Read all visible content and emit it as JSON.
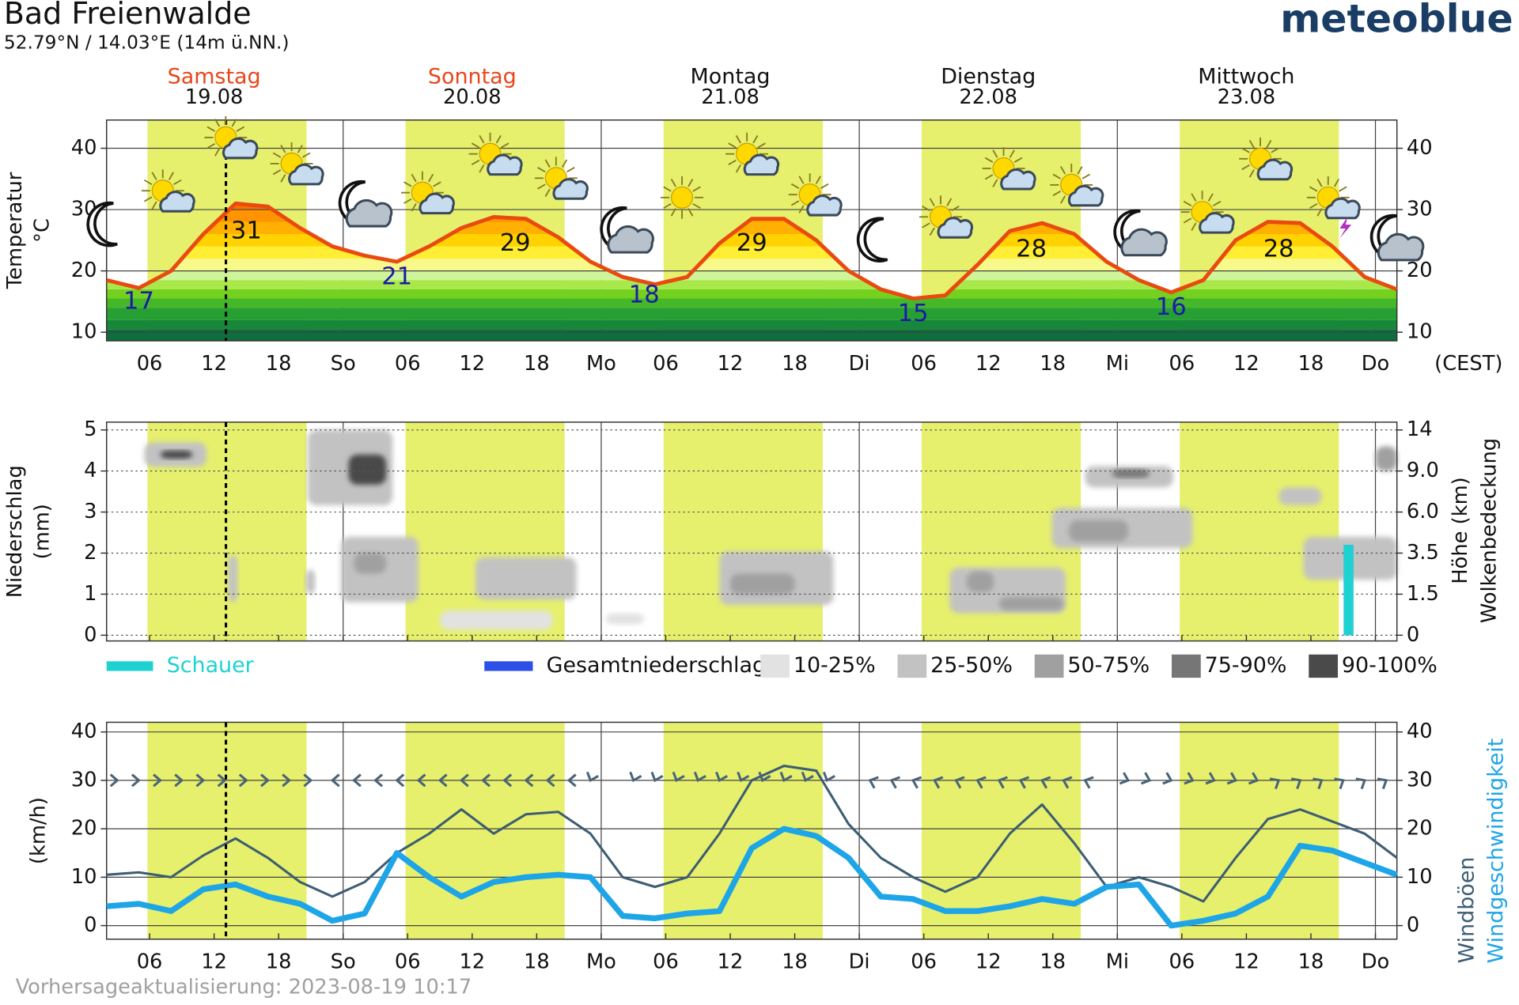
{
  "header": {
    "title": "Bad Freienwalde",
    "subtitle": "52.79°N / 14.03°E (14m ü.NN.)",
    "logo": "meteoblue",
    "timezone": "(CEST)",
    "footer": "Vorhersageaktualisierung: 2023-08-19 10:17"
  },
  "chart_data": [
    {
      "type": "line",
      "axis_label": [
        "Temperatur",
        "°C"
      ],
      "days": [
        {
          "name": "Samstag",
          "date": "19.08",
          "color": "#e8461a"
        },
        {
          "name": "Sonntag",
          "date": "20.08",
          "color": "#e8461a"
        },
        {
          "name": "Montag",
          "date": "21.08",
          "color": "#111111"
        },
        {
          "name": "Dienstag",
          "date": "22.08",
          "color": "#111111"
        },
        {
          "name": "Mittwoch",
          "date": "23.08",
          "color": "#111111"
        }
      ],
      "daylight": [
        [
          5.8,
          20.6
        ],
        [
          29.8,
          44.6
        ],
        [
          53.8,
          68.6
        ],
        [
          77.8,
          92.6
        ],
        [
          101.8,
          116.6
        ]
      ],
      "daylight_color": "#e6f06c",
      "now": 13.1,
      "xlim": [
        2,
        122
      ],
      "xticks": [
        {
          "value": 6,
          "label": "06"
        },
        12,
        18,
        {
          "value": 24,
          "label": "So"
        },
        {
          "value": 30,
          "label": "06"
        },
        {
          "value": 36,
          "label": "12"
        },
        {
          "value": 42,
          "label": "18"
        },
        {
          "value": 48,
          "label": "Mo"
        },
        {
          "value": 54,
          "label": "06"
        },
        {
          "value": 60,
          "label": "12"
        },
        {
          "value": 66,
          "label": "18"
        },
        {
          "value": 72,
          "label": "Di"
        },
        {
          "value": 78,
          "label": "06"
        },
        {
          "value": 84,
          "label": "12"
        },
        {
          "value": 90,
          "label": "18"
        },
        {
          "value": 96,
          "label": "Mi"
        },
        {
          "value": 102,
          "label": "06"
        },
        {
          "value": 108,
          "label": "12"
        },
        {
          "value": 114,
          "label": "18"
        },
        {
          "value": 120,
          "label": "Do"
        }
      ],
      "ylim": [
        8.6,
        44.6
      ],
      "yticks": [
        10,
        20,
        30,
        40
      ],
      "mirror_ticks": true,
      "grid": "solid",
      "x": [
        2,
        5,
        8,
        11,
        14,
        17,
        20,
        23,
        26,
        29,
        32,
        35,
        38,
        41,
        44,
        47,
        50,
        53,
        56,
        59,
        62,
        65,
        68,
        71,
        74,
        77,
        80,
        83,
        86,
        89,
        92,
        95,
        98,
        101,
        104,
        107,
        110,
        113,
        116,
        119,
        122
      ],
      "values": [
        18.5,
        17.2,
        20,
        26,
        31,
        30.5,
        27,
        24,
        22.5,
        21.5,
        24,
        27,
        28.8,
        28.5,
        25.5,
        21.5,
        19,
        17.8,
        19,
        24.5,
        28.5,
        28.5,
        25,
        20,
        17,
        15.5,
        16,
        21,
        26.5,
        27.8,
        26,
        21.5,
        18.5,
        16.5,
        18.5,
        25,
        28,
        27.8,
        24,
        19,
        17
      ],
      "color": "#e84a10",
      "color_scale": [
        [
          0,
          "#0e6e3c"
        ],
        [
          10.5,
          "#17873a"
        ],
        [
          12,
          "#27a033"
        ],
        [
          14,
          "#45b82a"
        ],
        [
          15.5,
          "#75d11f"
        ],
        [
          17,
          "#a8e84a"
        ],
        [
          18.5,
          "#cff59a"
        ],
        [
          20,
          "#f7f98a"
        ],
        [
          22,
          "#ffee33"
        ],
        [
          24,
          "#ffd200"
        ],
        [
          26,
          "#ffb000"
        ],
        [
          28,
          "#ff9400"
        ],
        [
          30,
          "#ff6e00"
        ]
      ],
      "extremes": [
        {
          "x": 5,
          "value": 17,
          "kind": "min"
        },
        {
          "x": 15,
          "value": 31,
          "kind": "max"
        },
        {
          "x": 29,
          "value": 21,
          "kind": "min"
        },
        {
          "x": 40,
          "value": 29,
          "kind": "max"
        },
        {
          "x": 52,
          "value": 18,
          "kind": "min"
        },
        {
          "x": 62,
          "value": 29,
          "kind": "max"
        },
        {
          "x": 77,
          "value": 15,
          "kind": "min"
        },
        {
          "x": 88,
          "value": 28,
          "kind": "max"
        },
        {
          "x": 101,
          "value": 16,
          "kind": "min"
        },
        {
          "x": 111,
          "value": 28,
          "kind": "max"
        }
      ],
      "min_color": "#1a1aa8",
      "max_color": "#111111"
    },
    {
      "type": "precipitation",
      "axis_label": [
        "Niederschlag",
        "(mm)"
      ],
      "y2_label": [
        "Höhe (km)",
        "Wolkenbedeckung"
      ],
      "xlim": [
        2,
        122
      ],
      "ylim": [
        -0.14,
        5.19
      ],
      "yticks": [
        0,
        1,
        2,
        3,
        4,
        5
      ],
      "y2ticks": [
        0,
        1.5,
        3.5,
        {
          "value": 6,
          "label": "6.0"
        },
        {
          "value": 9,
          "label": "9.0"
        },
        14
      ],
      "grid": "dotted",
      "x": [
        117.5
      ],
      "series": [
        {
          "name": "Gesamtniederschlag",
          "color": "#2e4fe6",
          "values": [
            2.2
          ]
        },
        {
          "name": "Schauer",
          "color": "#1ed2d2",
          "values": [
            2.2
          ]
        }
      ],
      "cloud_levels": [
        {
          "label": "10-25%",
          "color": "#e2e2e2"
        },
        {
          "label": "25-50%",
          "color": "#c2c2c2"
        },
        {
          "label": "50-75%",
          "color": "#a0a0a0"
        },
        {
          "label": "75-90%",
          "color": "#767676"
        },
        {
          "label": "90-100%",
          "color": "#4a4a4a"
        }
      ],
      "clouds": [
        {
          "x": [
            5.5,
            11.3
          ],
          "height": [
            9.5,
            12.5
          ],
          "level": 1
        },
        {
          "x": [
            7,
            10
          ],
          "height": [
            10.5,
            11.5
          ],
          "level": 4
        },
        {
          "x": [
            20.7,
            28.6
          ],
          "height": [
            6.5,
            14
          ],
          "level": 1
        },
        {
          "x": [
            24.5,
            28
          ],
          "height": [
            8,
            11
          ],
          "level": 4
        },
        {
          "x": [
            23.8,
            31
          ],
          "height": [
            1.2,
            4.5
          ],
          "level": 1
        },
        {
          "x": [
            25,
            28
          ],
          "height": [
            2.5,
            3.5
          ],
          "level": 2
        },
        {
          "x": [
            36.3,
            45.7
          ],
          "height": [
            1.3,
            3.3
          ],
          "level": 1
        },
        {
          "x": [
            33,
            43.5
          ],
          "height": [
            0.2,
            0.9
          ],
          "level": 0
        },
        {
          "x": [
            48.4,
            52
          ],
          "height": [
            0.4,
            0.8
          ],
          "level": 0
        },
        {
          "x": [
            59,
            69.6
          ],
          "height": [
            1.1,
            3.6
          ],
          "level": 1
        },
        {
          "x": [
            60,
            66
          ],
          "height": [
            1.5,
            2.5
          ],
          "level": 2
        },
        {
          "x": [
            80.4,
            91.2
          ],
          "height": [
            0.8,
            2.8
          ],
          "level": 1
        },
        {
          "x": [
            82,
            84.5
          ],
          "height": [
            1.6,
            2.6
          ],
          "level": 2
        },
        {
          "x": [
            85,
            91
          ],
          "height": [
            0.9,
            1.4
          ],
          "level": 2
        },
        {
          "x": [
            89.9,
            103
          ],
          "height": [
            3.8,
            6.3
          ],
          "level": 1
        },
        {
          "x": [
            91.5,
            97
          ],
          "height": [
            4.2,
            5.5
          ],
          "level": 2
        },
        {
          "x": [
            93,
            101.2
          ],
          "height": [
            7.8,
            9.6
          ],
          "level": 1
        },
        {
          "x": [
            95.5,
            99
          ],
          "height": [
            8.5,
            9.2
          ],
          "level": 3
        },
        {
          "x": [
            111,
            115
          ],
          "height": [
            6.5,
            7.8
          ],
          "level": 1
        },
        {
          "x": [
            113.3,
            122
          ],
          "height": [
            2.2,
            4.5
          ],
          "level": 1
        },
        {
          "x": [
            120,
            122
          ],
          "height": [
            9,
            12
          ],
          "level": 2
        },
        {
          "x": [
            13.3,
            14.2
          ],
          "height": [
            1.2,
            3.4
          ],
          "level": 1
        },
        {
          "x": [
            20.5,
            21.4
          ],
          "height": [
            1.5,
            2.7
          ],
          "level": 1
        }
      ]
    },
    {
      "type": "line",
      "axis_label": [
        "(km/h)"
      ],
      "xlim": [
        2,
        122
      ],
      "xticks": [
        {
          "value": 6,
          "label": "06"
        },
        12,
        18,
        {
          "value": 24,
          "label": "So"
        },
        {
          "value": 30,
          "label": "06"
        },
        {
          "value": 36,
          "label": "12"
        },
        {
          "value": 42,
          "label": "18"
        },
        {
          "value": 48,
          "label": "Mo"
        },
        {
          "value": 54,
          "label": "06"
        },
        {
          "value": 60,
          "label": "12"
        },
        {
          "value": 66,
          "label": "18"
        },
        {
          "value": 72,
          "label": "Di"
        },
        {
          "value": 78,
          "label": "06"
        },
        {
          "value": 84,
          "label": "12"
        },
        {
          "value": 90,
          "label": "18"
        },
        {
          "value": 96,
          "label": "Mi"
        },
        {
          "value": 102,
          "label": "06"
        },
        {
          "value": 108,
          "label": "12"
        },
        {
          "value": 114,
          "label": "18"
        },
        {
          "value": 120,
          "label": "Do"
        }
      ],
      "ylim": [
        -2.8,
        42
      ],
      "yticks": [
        0,
        10,
        20,
        30,
        40
      ],
      "mirror_ticks": true,
      "grid": "solid",
      "x": [
        2,
        5,
        8,
        11,
        14,
        17,
        20,
        23,
        26,
        29,
        32,
        35,
        38,
        41,
        44,
        47,
        50,
        53,
        56,
        59,
        62,
        65,
        68,
        71,
        74,
        77,
        80,
        83,
        86,
        89,
        92,
        95,
        98,
        101,
        104,
        107,
        110,
        113,
        116,
        119,
        122
      ],
      "series": [
        {
          "name": "Windböen",
          "color": "#3d5d73",
          "width": 2.5,
          "values": [
            10.5,
            11,
            10,
            14.5,
            18,
            14,
            9,
            6,
            9,
            15,
            19,
            24,
            19,
            23,
            23.5,
            19,
            10,
            8,
            10,
            19,
            30,
            33,
            32,
            21,
            14,
            10,
            7,
            10,
            19,
            25,
            17,
            8,
            10,
            8,
            5,
            14,
            22,
            24,
            21.5,
            19,
            14
          ]
        },
        {
          "name": "Windgeschwindigkeit",
          "color": "#1ea5e8",
          "width": 6,
          "values": [
            4,
            4.5,
            3,
            7.5,
            8.5,
            6,
            4.5,
            1,
            2.5,
            15,
            10,
            6,
            9,
            10,
            10.5,
            10,
            2,
            1.5,
            2.5,
            3,
            16,
            20,
            18.5,
            14,
            6,
            5.5,
            3,
            3,
            4,
            5.5,
            4.5,
            8,
            8.5,
            0,
            1,
            2.5,
            6,
            16.5,
            15.5,
            13,
            10.5
          ]
        }
      ]
    }
  ]
}
